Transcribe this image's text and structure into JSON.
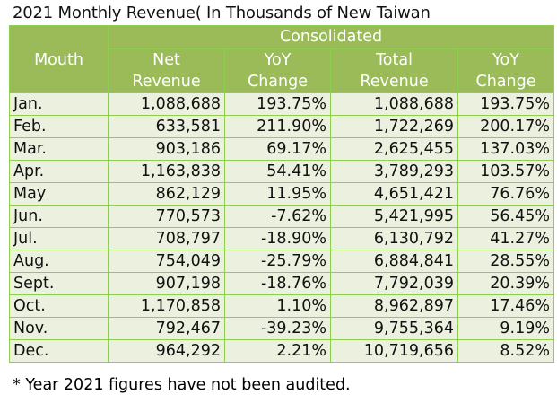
{
  "title": "2021 Monthly Revenue( In Thousands of New Taiwan",
  "headers": {
    "month": "Mouth",
    "group": "Consolidated",
    "net_revenue": [
      "Net",
      "Revenue"
    ],
    "net_yoy": [
      "YoY",
      "Change"
    ],
    "total_revenue": [
      "Total",
      "Revenue"
    ],
    "total_yoy": [
      "YoY",
      "Change"
    ]
  },
  "rows": [
    [
      "Jan.",
      "1,088,688",
      "193.75%",
      "1,088,688",
      "193.75%"
    ],
    [
      "Feb.",
      "633,581",
      "211.90%",
      "1,722,269",
      "200.17%"
    ],
    [
      "Mar.",
      "903,186",
      "69.17%",
      "2,625,455",
      "137.03%"
    ],
    [
      "Apr.",
      "1,163,838",
      "54.41%",
      "3,789,293",
      "103.57%"
    ],
    [
      "May",
      "862,129",
      "11.95%",
      "4,651,421",
      "76.76%"
    ],
    [
      "Jun.",
      "770,573",
      "-7.62%",
      "5,421,995",
      "56.45%"
    ],
    [
      "Jul.",
      "708,797",
      "-18.90%",
      "6,130,792",
      "41.27%"
    ],
    [
      "Aug.",
      "754,049",
      "-25.79%",
      "6,884,841",
      "28.55%"
    ],
    [
      "Sept.",
      "907,198",
      "-18.76%",
      "7,792,039",
      "20.39%"
    ],
    [
      "Oct.",
      "1,170,858",
      "1.10%",
      "8,962,897",
      "17.46%"
    ],
    [
      "Nov.",
      "792,467",
      "-39.23%",
      "9,755,364",
      "9.19%"
    ],
    [
      "Dec.",
      "964,292",
      "2.21%",
      "10,719,656",
      "8.52%"
    ]
  ],
  "footnote": "* Year 2021 figures have not been audited."
}
